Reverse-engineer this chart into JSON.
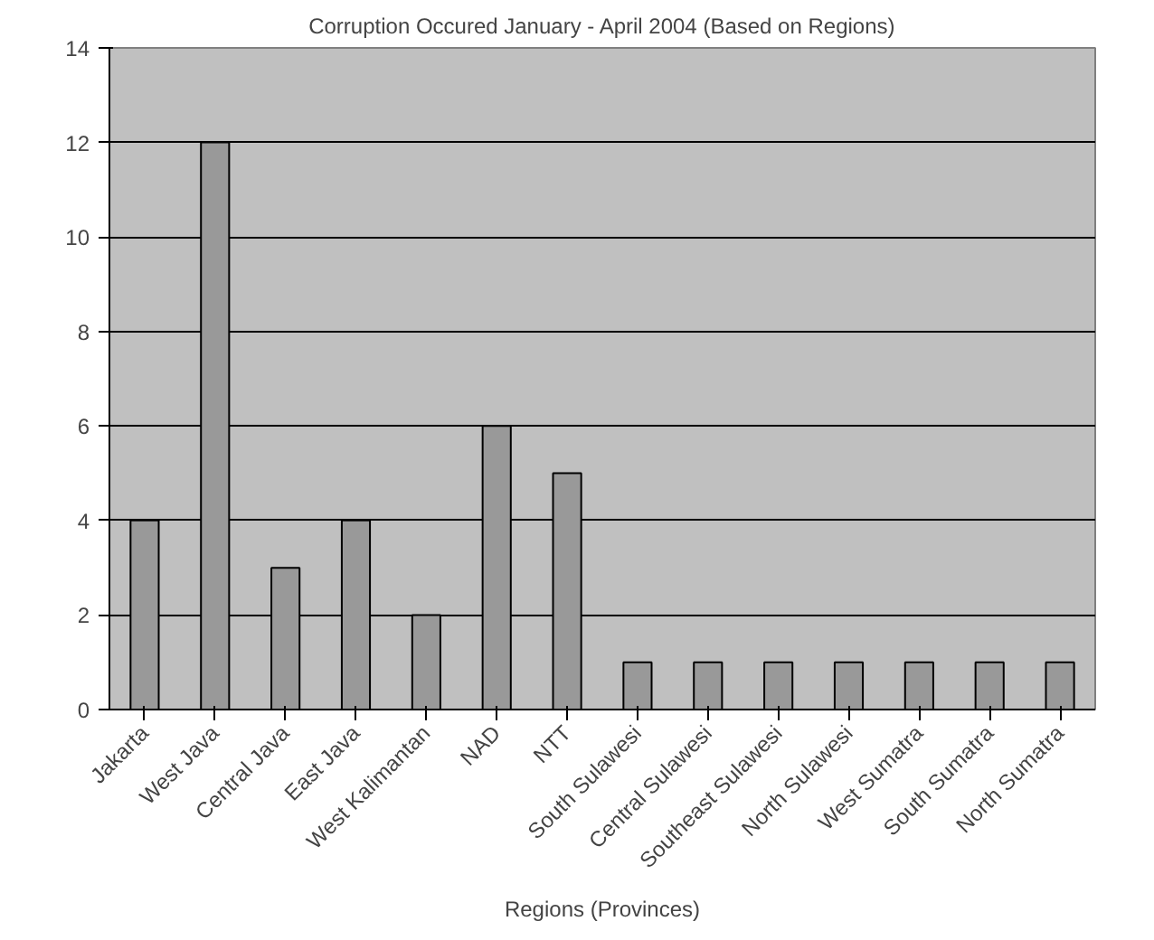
{
  "chart_data": {
    "type": "bar",
    "title": "Corruption Occured January - April 2004 (Based on Regions)",
    "xlabel": "Regions (Provinces)",
    "categories": [
      "Jakarta",
      "West Java",
      "Central Java",
      "East Java",
      "West Kalimantan",
      "NAD",
      "NTT",
      "South Sulawesi",
      "Central Sulawesi",
      "Southeast Sulawesi",
      "North Sulawesi",
      "West Sumatra",
      "South Sumatra",
      "North Sumatra"
    ],
    "values": [
      4,
      12,
      3,
      4,
      2,
      6,
      5,
      1,
      1,
      1,
      1,
      1,
      1,
      1
    ],
    "color": "#999999",
    "ylim": [
      0,
      14
    ],
    "yticks": [
      0,
      2,
      4,
      6,
      8,
      10,
      12,
      14
    ],
    "grid": "y"
  }
}
